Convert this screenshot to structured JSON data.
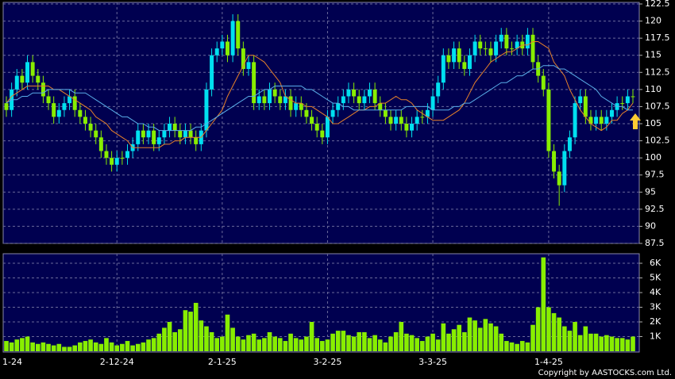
{
  "chart_data": {
    "type": "candlestick",
    "categories": [
      "1-24",
      null,
      null,
      null,
      null,
      null,
      null,
      null,
      null,
      null,
      null,
      null,
      null,
      null,
      null,
      null,
      null,
      null,
      null,
      null,
      null,
      "2-12-24",
      null,
      null,
      null,
      null,
      null,
      null,
      null,
      null,
      null,
      null,
      null,
      null,
      null,
      null,
      null,
      null,
      null,
      null,
      null,
      "2-1-25",
      null,
      null,
      null,
      null,
      null,
      null,
      null,
      null,
      null,
      null,
      null,
      null,
      null,
      null,
      null,
      null,
      null,
      null,
      null,
      "3-2-25",
      null,
      null,
      null,
      null,
      null,
      null,
      null,
      null,
      null,
      null,
      null,
      null,
      null,
      null,
      null,
      null,
      null,
      null,
      null,
      "3-3-25",
      null,
      null,
      null,
      null,
      null,
      null,
      null,
      null,
      null,
      null,
      null,
      null,
      null,
      null,
      null,
      null,
      null,
      null,
      null,
      null,
      null,
      "1-4-25",
      null,
      null,
      null,
      null,
      null,
      null,
      null,
      null,
      null,
      null,
      null,
      null,
      null,
      null,
      null,
      null
    ],
    "open": [
      108,
      107,
      110,
      112,
      111,
      114,
      112,
      111,
      109,
      108,
      106,
      107,
      108,
      109,
      107,
      106,
      105,
      104,
      103,
      101,
      100,
      99,
      100,
      100,
      101,
      102,
      104,
      103,
      104,
      102,
      103,
      104,
      105,
      104,
      103,
      104,
      103,
      102,
      104,
      110,
      115,
      116,
      117,
      115,
      120,
      116,
      113,
      114,
      108,
      109,
      108,
      110,
      109,
      108,
      109,
      107,
      108,
      107,
      106,
      105,
      104,
      103,
      106,
      107,
      108,
      109,
      110,
      109,
      108,
      109,
      110,
      108,
      107,
      106,
      105,
      106,
      105,
      104,
      105,
      106,
      106,
      107,
      109,
      111,
      115,
      114,
      116,
      114,
      113,
      115,
      117,
      116,
      116,
      115,
      117,
      118,
      116,
      116,
      117,
      116,
      118,
      114,
      112,
      110,
      101,
      98,
      96,
      101,
      103,
      108,
      109,
      106,
      105,
      106,
      105,
      106,
      107,
      108,
      108,
      109
    ],
    "high": [
      109,
      111,
      113,
      113,
      115,
      115,
      113,
      112,
      110,
      109,
      108,
      109,
      110,
      110,
      108,
      107,
      106,
      105,
      104,
      102,
      101,
      101,
      101,
      102,
      103,
      105,
      105,
      105,
      105,
      104,
      105,
      106,
      106,
      105,
      105,
      105,
      104,
      105,
      111,
      116,
      117,
      118,
      118,
      121,
      121,
      117,
      115,
      115,
      110,
      110,
      111,
      111,
      110,
      110,
      110,
      109,
      109,
      108,
      107,
      106,
      105,
      107,
      108,
      109,
      110,
      111,
      111,
      110,
      110,
      111,
      111,
      109,
      108,
      107,
      107,
      107,
      106,
      106,
      107,
      107,
      108,
      110,
      112,
      116,
      116,
      117,
      117,
      115,
      116,
      118,
      118,
      117,
      117,
      118,
      119,
      119,
      117,
      118,
      118,
      119,
      119,
      115,
      113,
      111,
      102,
      99,
      102,
      104,
      109,
      110,
      110,
      107,
      107,
      107,
      107,
      108,
      109,
      109,
      110,
      110
    ],
    "low": [
      106,
      106,
      109,
      110,
      110,
      111,
      110,
      108,
      107,
      105,
      105,
      106,
      107,
      106,
      105,
      104,
      103,
      102,
      100,
      99,
      98,
      98,
      99,
      99,
      100,
      101,
      102,
      102,
      101,
      101,
      102,
      103,
      103,
      102,
      102,
      102,
      101,
      101,
      103,
      109,
      114,
      115,
      114,
      114,
      115,
      112,
      112,
      107,
      107,
      107,
      107,
      108,
      107,
      107,
      106,
      106,
      106,
      105,
      104,
      103,
      102,
      102,
      105,
      106,
      107,
      108,
      108,
      107,
      107,
      108,
      107,
      106,
      105,
      104,
      104,
      104,
      103,
      103,
      104,
      105,
      105,
      106,
      108,
      110,
      113,
      113,
      113,
      112,
      112,
      114,
      115,
      115,
      114,
      114,
      116,
      115,
      115,
      115,
      115,
      115,
      113,
      111,
      109,
      100,
      97,
      93,
      95,
      100,
      102,
      107,
      105,
      104,
      104,
      104,
      104,
      105,
      106,
      107,
      107,
      108
    ],
    "close": [
      107,
      110,
      112,
      111,
      114,
      112,
      111,
      109,
      108,
      106,
      107,
      108,
      109,
      107,
      106,
      105,
      104,
      103,
      101,
      100,
      99,
      100,
      100,
      101,
      102,
      104,
      103,
      104,
      102,
      103,
      104,
      105,
      104,
      103,
      104,
      103,
      102,
      104,
      110,
      115,
      116,
      117,
      115,
      120,
      116,
      113,
      114,
      108,
      109,
      108,
      110,
      109,
      108,
      109,
      107,
      108,
      107,
      106,
      105,
      104,
      103,
      106,
      107,
      108,
      109,
      110,
      109,
      108,
      109,
      110,
      108,
      107,
      106,
      105,
      106,
      105,
      104,
      105,
      106,
      106,
      107,
      109,
      111,
      115,
      114,
      116,
      114,
      113,
      115,
      117,
      116,
      116,
      115,
      117,
      118,
      116,
      116,
      117,
      116,
      118,
      114,
      112,
      110,
      101,
      98,
      96,
      101,
      103,
      108,
      109,
      106,
      105,
      106,
      105,
      106,
      107,
      108,
      108,
      109,
      109
    ],
    "up_color": "#00e0f0",
    "down_color": "#88ee00",
    "ylim": [
      87.5,
      122.5
    ],
    "yticks": [
      87.5,
      90,
      92.5,
      95,
      97.5,
      100,
      102.5,
      105,
      107.5,
      110,
      112.5,
      115,
      117.5,
      120,
      122.5
    ],
    "grid": true,
    "moving_averages": [
      {
        "color": "#e8822a",
        "values": [
          108,
          109,
          109.5,
          110,
          110.5,
          110.5,
          110.5,
          110.5,
          110.5,
          110,
          110,
          109.5,
          109,
          108.5,
          108,
          107.5,
          107,
          106,
          105.5,
          105,
          104,
          103.5,
          103,
          102.5,
          101.5,
          101.5,
          101.5,
          101.5,
          101.5,
          101.5,
          102,
          102,
          102.5,
          102.5,
          103,
          103,
          103,
          103,
          104,
          105,
          106,
          107,
          109,
          110.5,
          112,
          113.5,
          115,
          115,
          114.5,
          114,
          113,
          112,
          111,
          109,
          108.5,
          108,
          108,
          107.5,
          107.5,
          107,
          106.5,
          106,
          105,
          105,
          105.5,
          106,
          106.5,
          107,
          107,
          107.5,
          107.5,
          108,
          108,
          108.5,
          109,
          108.5,
          108.5,
          108,
          107,
          106.5,
          106,
          105.5,
          105.5,
          105.5,
          106,
          106.5,
          107,
          108,
          109.5,
          111,
          112,
          113,
          114,
          114.5,
          115,
          115.5,
          115.5,
          116,
          116.5,
          116.5,
          117,
          117,
          116.5,
          116,
          114,
          113,
          112,
          110,
          108.5,
          107,
          106,
          105,
          104.5,
          104,
          104.5,
          105.5,
          105.5,
          106.5,
          107,
          108
        ]
      },
      {
        "color": "#5aaee8",
        "values": [
          108,
          108.5,
          108.5,
          109,
          109,
          109.5,
          109.5,
          109.5,
          110,
          110,
          110,
          110,
          110,
          109.5,
          109.5,
          109.5,
          109,
          108.5,
          108,
          107.5,
          107,
          106.5,
          106,
          106,
          105.5,
          105,
          105,
          104.5,
          104.5,
          104,
          104,
          104,
          104,
          104,
          104,
          104,
          104.5,
          104.5,
          105,
          105.5,
          106,
          106.5,
          107,
          107.5,
          108,
          108.5,
          109,
          109,
          109.5,
          110,
          110,
          110.5,
          110.5,
          110.5,
          110.5,
          110.5,
          110.5,
          110,
          110,
          109.5,
          109,
          108.5,
          108,
          108,
          107.5,
          107.5,
          107,
          107,
          107,
          107,
          107,
          107,
          107,
          107,
          107,
          107,
          107.5,
          107.5,
          107.5,
          107.5,
          107.5,
          107,
          107,
          107,
          107,
          107.5,
          107.5,
          108,
          108,
          108.5,
          109,
          109.5,
          110,
          110.5,
          111,
          111,
          111.5,
          112,
          112,
          112.5,
          113,
          113,
          113.5,
          113.5,
          113.5,
          113,
          113,
          112.5,
          112,
          111.5,
          111,
          110.5,
          110,
          109,
          108.5,
          108,
          107.5,
          107.5,
          107,
          107
        ]
      }
    ],
    "volume": {
      "color": "#88ee00",
      "values": [
        700,
        600,
        800,
        900,
        1000,
        600,
        500,
        600,
        500,
        400,
        500,
        300,
        300,
        400,
        600,
        700,
        800,
        600,
        500,
        900,
        600,
        400,
        500,
        700,
        400,
        500,
        600,
        800,
        900,
        1200,
        1600,
        2000,
        1300,
        1500,
        2800,
        2700,
        3300,
        2100,
        1700,
        1300,
        900,
        1000,
        2500,
        1600,
        1000,
        800,
        1100,
        1200,
        800,
        900,
        1300,
        1000,
        900,
        700,
        1200,
        900,
        800,
        1000,
        2000,
        900,
        700,
        800,
        1200,
        1400,
        1400,
        1100,
        1000,
        1300,
        1300,
        900,
        1100,
        800,
        600,
        1000,
        1300,
        2000,
        1200,
        1100,
        900,
        700,
        1000,
        1200,
        800,
        1900,
        1200,
        1500,
        1800,
        1300,
        2300,
        2100,
        1600,
        2200,
        1900,
        1700,
        1200,
        700,
        600,
        500,
        700,
        600,
        1800,
        3000,
        6400,
        3000,
        2600,
        2300,
        1700,
        1400,
        2000,
        1100,
        1700,
        1200,
        1200,
        1000,
        1100,
        1000,
        900,
        900,
        800,
        1000
      ],
      "ylim": [
        0,
        6650
      ],
      "yticks": [
        {
          "value": 1000,
          "label": "1K"
        },
        {
          "value": 2000,
          "label": "2K"
        },
        {
          "value": 3000,
          "label": "3K"
        },
        {
          "value": 4000,
          "label": "4K"
        },
        {
          "value": 5000,
          "label": "5K"
        },
        {
          "value": 6000,
          "label": "6K"
        }
      ]
    },
    "footer": "Copyright by AASTOCKS.com Ltd."
  }
}
